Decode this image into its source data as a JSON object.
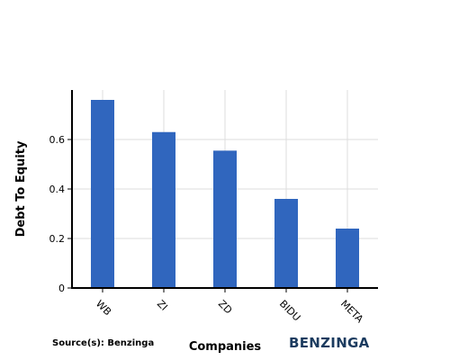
{
  "source": "Source(s): Benzinga",
  "brand": "BENZINGA",
  "colors": {
    "bar": "#3066be",
    "grid": "#dddddd",
    "axis": "#000000",
    "brand": "#1b3b5f"
  },
  "chart_data": {
    "type": "bar",
    "categories": [
      "WB",
      "ZI",
      "ZD",
      "BIDU",
      "META"
    ],
    "values": [
      0.76,
      0.63,
      0.555,
      0.36,
      0.24
    ],
    "xlabel": "Companies",
    "ylabel": "Debt To Equity",
    "ylim": [
      0,
      0.8
    ],
    "yticks": [
      0,
      0.2,
      0.4,
      0.6
    ],
    "ytick_labels": [
      "0",
      "0.2",
      "0.4",
      "0.6"
    ],
    "grid": true
  }
}
